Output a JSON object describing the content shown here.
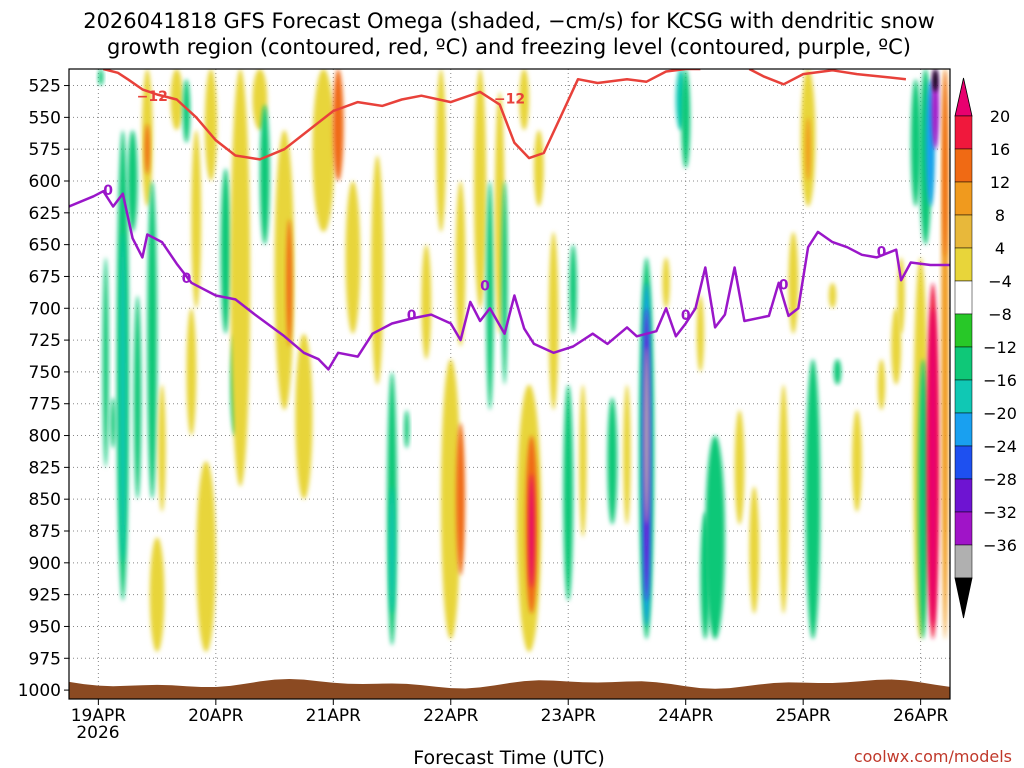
{
  "chart_data": {
    "type": "time-height cross section",
    "title_line1": "2026041818 GFS Forecast Omega (shaded, −cm/s) for KCSG with dendritic snow",
    "title_line2": "growth region (contoured, red, ºC) and freezing level (contoured, purple, ºC)",
    "xlabel": "Forecast Time (UTC)",
    "credit": "coolwx.com/models",
    "y_unit": "hPa",
    "y_range": [
      512,
      1007
    ],
    "x_range_hours": [
      -6,
      174
    ],
    "pressure_levels": [
      525,
      550,
      575,
      600,
      625,
      650,
      675,
      700,
      725,
      750,
      775,
      800,
      825,
      850,
      875,
      900,
      925,
      950,
      975,
      1000
    ],
    "date_ticks": [
      {
        "label": "19APR",
        "hour": 0
      },
      {
        "label": "20APR",
        "hour": 24
      },
      {
        "label": "21APR",
        "hour": 48
      },
      {
        "label": "22APR",
        "hour": 72
      },
      {
        "label": "23APR",
        "hour": 96
      },
      {
        "label": "24APR",
        "hour": 120
      },
      {
        "label": "25APR",
        "hour": 144
      },
      {
        "label": "26APR",
        "hour": 168
      }
    ],
    "year_label": "2026",
    "colorbar": {
      "labels": [
        "20",
        "16",
        "12",
        "8",
        "4",
        "−4",
        "−8",
        "−12",
        "−16",
        "−20",
        "−24",
        "−28",
        "−32",
        "−36"
      ],
      "colors": [
        "#e8006f",
        "#f0183c",
        "#f06a14",
        "#f09a1e",
        "#e8b83a",
        "#e8d53a",
        "#ffffff",
        "#28c828",
        "#0fc878",
        "#10c8b4",
        "#19a0f0",
        "#1e50f0",
        "#6e14d2",
        "#a014c8",
        "#b0b0b0",
        "#000000"
      ]
    },
    "dgz_contour_label": "−12",
    "freezing_contour_label": "0",
    "freezing_level_series": [
      {
        "hour": -6,
        "p": 620
      },
      {
        "hour": -1,
        "p": 612
      },
      {
        "hour": 1,
        "p": 608
      },
      {
        "hour": 3,
        "p": 620
      },
      {
        "hour": 5,
        "p": 610
      },
      {
        "hour": 7,
        "p": 645
      },
      {
        "hour": 9,
        "p": 660
      },
      {
        "hour": 10,
        "p": 642
      },
      {
        "hour": 13,
        "p": 648
      },
      {
        "hour": 16,
        "p": 665
      },
      {
        "hour": 19,
        "p": 680
      },
      {
        "hour": 24,
        "p": 690
      },
      {
        "hour": 28,
        "p": 693
      },
      {
        "hour": 32,
        "p": 705
      },
      {
        "hour": 38,
        "p": 722
      },
      {
        "hour": 42,
        "p": 735
      },
      {
        "hour": 45,
        "p": 740
      },
      {
        "hour": 47,
        "p": 748
      },
      {
        "hour": 49,
        "p": 735
      },
      {
        "hour": 53,
        "p": 738
      },
      {
        "hour": 56,
        "p": 720
      },
      {
        "hour": 60,
        "p": 712
      },
      {
        "hour": 64,
        "p": 708
      },
      {
        "hour": 68,
        "p": 705
      },
      {
        "hour": 72,
        "p": 712
      },
      {
        "hour": 74,
        "p": 725
      },
      {
        "hour": 76,
        "p": 695
      },
      {
        "hour": 78,
        "p": 710
      },
      {
        "hour": 80,
        "p": 700
      },
      {
        "hour": 83,
        "p": 720
      },
      {
        "hour": 85,
        "p": 690
      },
      {
        "hour": 87,
        "p": 716
      },
      {
        "hour": 89,
        "p": 728
      },
      {
        "hour": 93,
        "p": 735
      },
      {
        "hour": 97,
        "p": 730
      },
      {
        "hour": 101,
        "p": 720
      },
      {
        "hour": 104,
        "p": 728
      },
      {
        "hour": 108,
        "p": 715
      },
      {
        "hour": 110,
        "p": 722
      },
      {
        "hour": 114,
        "p": 718
      },
      {
        "hour": 116,
        "p": 700
      },
      {
        "hour": 118,
        "p": 722
      },
      {
        "hour": 120,
        "p": 712
      },
      {
        "hour": 122,
        "p": 700
      },
      {
        "hour": 124,
        "p": 668
      },
      {
        "hour": 126,
        "p": 715
      },
      {
        "hour": 128,
        "p": 705
      },
      {
        "hour": 130,
        "p": 668
      },
      {
        "hour": 132,
        "p": 710
      },
      {
        "hour": 137,
        "p": 706
      },
      {
        "hour": 139,
        "p": 680
      },
      {
        "hour": 141,
        "p": 706
      },
      {
        "hour": 143,
        "p": 700
      },
      {
        "hour": 145,
        "p": 652
      },
      {
        "hour": 147,
        "p": 640
      },
      {
        "hour": 150,
        "p": 648
      },
      {
        "hour": 153,
        "p": 652
      },
      {
        "hour": 156,
        "p": 658
      },
      {
        "hour": 159,
        "p": 660
      },
      {
        "hour": 163,
        "p": 654
      },
      {
        "hour": 164,
        "p": 678
      },
      {
        "hour": 166,
        "p": 664
      },
      {
        "hour": 170,
        "p": 666
      },
      {
        "hour": 174,
        "p": 666
      }
    ],
    "dgz_minus12_series": [
      {
        "hour": 1,
        "p": 512
      },
      {
        "hour": 4,
        "p": 515
      },
      {
        "hour": 6,
        "p": 520
      },
      {
        "hour": 9,
        "p": 528
      },
      {
        "hour": 12,
        "p": 532
      },
      {
        "hour": 16,
        "p": 536
      },
      {
        "hour": 20,
        "p": 550
      },
      {
        "hour": 24,
        "p": 568
      },
      {
        "hour": 28,
        "p": 580
      },
      {
        "hour": 33,
        "p": 583
      },
      {
        "hour": 38,
        "p": 575
      },
      {
        "hour": 43,
        "p": 560
      },
      {
        "hour": 48,
        "p": 545
      },
      {
        "hour": 53,
        "p": 538
      },
      {
        "hour": 58,
        "p": 541
      },
      {
        "hour": 62,
        "p": 536
      },
      {
        "hour": 66,
        "p": 533
      },
      {
        "hour": 72,
        "p": 538
      },
      {
        "hour": 78,
        "p": 530
      },
      {
        "hour": 82,
        "p": 540
      },
      {
        "hour": 85,
        "p": 570
      },
      {
        "hour": 88,
        "p": 582
      },
      {
        "hour": 91,
        "p": 578
      },
      {
        "hour": 95,
        "p": 545
      },
      {
        "hour": 98,
        "p": 520
      },
      {
        "hour": 102,
        "p": 523
      },
      {
        "hour": 108,
        "p": 520
      },
      {
        "hour": 112,
        "p": 522
      },
      {
        "hour": 116,
        "p": 514
      },
      {
        "hour": 120,
        "p": 512
      },
      {
        "hour": 123,
        "p": 512
      }
    ],
    "dgz_minus12_series_b": [
      {
        "hour": 133,
        "p": 512
      },
      {
        "hour": 136,
        "p": 518
      },
      {
        "hour": 140,
        "p": 524
      },
      {
        "hour": 144,
        "p": 516
      },
      {
        "hour": 150,
        "p": 513
      },
      {
        "hour": 155,
        "p": 516
      },
      {
        "hour": 160,
        "p": 518
      },
      {
        "hour": 165,
        "p": 520
      }
    ],
    "omega_blobs": [
      {
        "hour": 0.5,
        "p_top": 512,
        "p_bot": 525,
        "width_h": 1,
        "value": -8
      },
      {
        "hour": 1.5,
        "p_top": 660,
        "p_bot": 825,
        "width_h": 1.2,
        "value": -8
      },
      {
        "hour": 3,
        "p_top": 770,
        "p_bot": 810,
        "width_h": 1,
        "value": -8
      },
      {
        "hour": 5,
        "p_top": 560,
        "p_bot": 930,
        "width_h": 2.5,
        "value": -8
      },
      {
        "hour": 5,
        "p_top": 640,
        "p_bot": 900,
        "width_h": 1.2,
        "value": -12
      },
      {
        "hour": 7,
        "p_top": 560,
        "p_bot": 640,
        "width_h": 2,
        "value": -8
      },
      {
        "hour": 8,
        "p_top": 690,
        "p_bot": 850,
        "width_h": 1.5,
        "value": -8
      },
      {
        "hour": 10,
        "p_top": 512,
        "p_bot": 620,
        "width_h": 2.2,
        "value": 6
      },
      {
        "hour": 10,
        "p_top": 555,
        "p_bot": 595,
        "width_h": 0.8,
        "value": 12
      },
      {
        "hour": 11,
        "p_top": 600,
        "p_bot": 850,
        "width_h": 2,
        "value": -8
      },
      {
        "hour": 12,
        "p_top": 880,
        "p_bot": 970,
        "width_h": 3,
        "value": 6
      },
      {
        "hour": 13,
        "p_top": 760,
        "p_bot": 860,
        "width_h": 1.5,
        "value": 6
      },
      {
        "hour": 16,
        "p_top": 512,
        "p_bot": 560,
        "width_h": 2.5,
        "value": 6
      },
      {
        "hour": 18,
        "p_top": 520,
        "p_bot": 570,
        "width_h": 1.5,
        "value": -8
      },
      {
        "hour": 19,
        "p_top": 700,
        "p_bot": 800,
        "width_h": 2,
        "value": 6
      },
      {
        "hour": 20,
        "p_top": 560,
        "p_bot": 700,
        "width_h": 2,
        "value": 6
      },
      {
        "hour": 22,
        "p_top": 820,
        "p_bot": 970,
        "width_h": 4,
        "value": 6
      },
      {
        "hour": 23,
        "p_top": 512,
        "p_bot": 600,
        "width_h": 2.5,
        "value": 6
      },
      {
        "hour": 26,
        "p_top": 590,
        "p_bot": 720,
        "width_h": 2,
        "value": -8
      },
      {
        "hour": 28,
        "p_top": 720,
        "p_bot": 800,
        "width_h": 2,
        "value": -8
      },
      {
        "hour": 29,
        "p_top": 512,
        "p_bot": 840,
        "width_h": 4,
        "value": 6
      },
      {
        "hour": 33,
        "p_top": 512,
        "p_bot": 560,
        "width_h": 3,
        "value": 6
      },
      {
        "hour": 34,
        "p_top": 540,
        "p_bot": 650,
        "width_h": 2,
        "value": -8
      },
      {
        "hour": 38,
        "p_top": 560,
        "p_bot": 780,
        "width_h": 4,
        "value": 6
      },
      {
        "hour": 39,
        "p_top": 630,
        "p_bot": 730,
        "width_h": 1.2,
        "value": 12
      },
      {
        "hour": 42,
        "p_top": 720,
        "p_bot": 850,
        "width_h": 3.5,
        "value": 6
      },
      {
        "hour": 46,
        "p_top": 512,
        "p_bot": 640,
        "width_h": 4.5,
        "value": 6
      },
      {
        "hour": 49,
        "p_top": 512,
        "p_bot": 600,
        "width_h": 2.2,
        "value": 12
      },
      {
        "hour": 52,
        "p_top": 600,
        "p_bot": 720,
        "width_h": 3,
        "value": 6
      },
      {
        "hour": 57,
        "p_top": 580,
        "p_bot": 760,
        "width_h": 2.5,
        "value": 6
      },
      {
        "hour": 60,
        "p_top": 750,
        "p_bot": 965,
        "width_h": 2,
        "value": -8
      },
      {
        "hour": 60,
        "p_top": 840,
        "p_bot": 940,
        "width_h": 1,
        "value": -12
      },
      {
        "hour": 63,
        "p_top": 780,
        "p_bot": 810,
        "width_h": 1,
        "value": -8
      },
      {
        "hour": 67,
        "p_top": 650,
        "p_bot": 740,
        "width_h": 2,
        "value": 6
      },
      {
        "hour": 70,
        "p_top": 512,
        "p_bot": 640,
        "width_h": 2,
        "value": 6
      },
      {
        "hour": 72,
        "p_top": 740,
        "p_bot": 960,
        "width_h": 4,
        "value": 6
      },
      {
        "hour": 74,
        "p_top": 790,
        "p_bot": 910,
        "width_h": 1.8,
        "value": 12
      },
      {
        "hour": 74,
        "p_top": 600,
        "p_bot": 730,
        "width_h": 2,
        "value": 6
      },
      {
        "hour": 78,
        "p_top": 512,
        "p_bot": 700,
        "width_h": 2.5,
        "value": 6
      },
      {
        "hour": 80,
        "p_top": 600,
        "p_bot": 780,
        "width_h": 1.5,
        "value": -8
      },
      {
        "hour": 82,
        "p_top": 530,
        "p_bot": 720,
        "width_h": 2,
        "value": 6
      },
      {
        "hour": 83,
        "p_top": 600,
        "p_bot": 760,
        "width_h": 1.2,
        "value": -8
      },
      {
        "hour": 87,
        "p_top": 512,
        "p_bot": 560,
        "width_h": 2,
        "value": 6
      },
      {
        "hour": 88,
        "p_top": 760,
        "p_bot": 970,
        "width_h": 5,
        "value": 6
      },
      {
        "hour": 88.5,
        "p_top": 800,
        "p_bot": 940,
        "width_h": 2.5,
        "value": 12
      },
      {
        "hour": 88.5,
        "p_top": 830,
        "p_bot": 920,
        "width_h": 1,
        "value": 20
      },
      {
        "hour": 90,
        "p_top": 560,
        "p_bot": 620,
        "width_h": 2,
        "value": 6
      },
      {
        "hour": 93,
        "p_top": 640,
        "p_bot": 780,
        "width_h": 2,
        "value": 6
      },
      {
        "hour": 96,
        "p_top": 760,
        "p_bot": 930,
        "width_h": 2,
        "value": -8
      },
      {
        "hour": 97,
        "p_top": 650,
        "p_bot": 720,
        "width_h": 1.5,
        "value": -8
      },
      {
        "hour": 99,
        "p_top": 760,
        "p_bot": 880,
        "width_h": 1.5,
        "value": 6
      },
      {
        "hour": 105,
        "p_top": 770,
        "p_bot": 870,
        "width_h": 2,
        "value": -8
      },
      {
        "hour": 108,
        "p_top": 760,
        "p_bot": 870,
        "width_h": 1.5,
        "value": 6
      },
      {
        "hour": 112,
        "p_top": 660,
        "p_bot": 960,
        "width_h": 3,
        "value": -8
      },
      {
        "hour": 112,
        "p_top": 680,
        "p_bot": 950,
        "width_h": 2,
        "value": -16
      },
      {
        "hour": 112,
        "p_top": 700,
        "p_bot": 930,
        "width_h": 1.3,
        "value": -24
      },
      {
        "hour": 112,
        "p_top": 730,
        "p_bot": 870,
        "width_h": 0.8,
        "value": -34
      },
      {
        "hour": 116,
        "p_top": 660,
        "p_bot": 700,
        "width_h": 1.5,
        "value": 6
      },
      {
        "hour": 119,
        "p_top": 512,
        "p_bot": 560,
        "width_h": 2,
        "value": -12
      },
      {
        "hour": 120,
        "p_top": 512,
        "p_bot": 590,
        "width_h": 1.8,
        "value": -8
      },
      {
        "hour": 123,
        "p_top": 690,
        "p_bot": 750,
        "width_h": 1.5,
        "value": 6
      },
      {
        "hour": 124,
        "p_top": 860,
        "p_bot": 960,
        "width_h": 2,
        "value": -8
      },
      {
        "hour": 126,
        "p_top": 800,
        "p_bot": 960,
        "width_h": 4,
        "value": -8
      },
      {
        "hour": 131,
        "p_top": 780,
        "p_bot": 870,
        "width_h": 2,
        "value": 6
      },
      {
        "hour": 134,
        "p_top": 840,
        "p_bot": 940,
        "width_h": 2,
        "value": 6
      },
      {
        "hour": 140,
        "p_top": 760,
        "p_bot": 940,
        "width_h": 2,
        "value": 6
      },
      {
        "hour": 142,
        "p_top": 640,
        "p_bot": 720,
        "width_h": 2,
        "value": 6
      },
      {
        "hour": 145,
        "p_top": 512,
        "p_bot": 620,
        "width_h": 3,
        "value": 6
      },
      {
        "hour": 145,
        "p_top": 550,
        "p_bot": 600,
        "width_h": 1,
        "value": 10
      },
      {
        "hour": 146,
        "p_top": 740,
        "p_bot": 960,
        "width_h": 3,
        "value": -8
      },
      {
        "hour": 150,
        "p_top": 680,
        "p_bot": 700,
        "width_h": 1.5,
        "value": 6
      },
      {
        "hour": 151,
        "p_top": 740,
        "p_bot": 760,
        "width_h": 1.5,
        "value": -8
      },
      {
        "hour": 155,
        "p_top": 780,
        "p_bot": 860,
        "width_h": 2,
        "value": 6
      },
      {
        "hour": 160,
        "p_top": 740,
        "p_bot": 780,
        "width_h": 1.5,
        "value": 6
      },
      {
        "hour": 163,
        "p_top": 700,
        "p_bot": 760,
        "width_h": 2,
        "value": 6
      },
      {
        "hour": 164,
        "p_top": 660,
        "p_bot": 720,
        "width_h": 1.5,
        "value": 6
      },
      {
        "hour": 167,
        "p_top": 520,
        "p_bot": 620,
        "width_h": 2,
        "value": -8
      },
      {
        "hour": 168,
        "p_top": 660,
        "p_bot": 960,
        "width_h": 3,
        "value": 6
      },
      {
        "hour": 168.5,
        "p_top": 740,
        "p_bot": 960,
        "width_h": 2,
        "value": -8
      },
      {
        "hour": 169,
        "p_top": 512,
        "p_bot": 650,
        "width_h": 2.5,
        "value": -8
      },
      {
        "hour": 170,
        "p_top": 520,
        "p_bot": 620,
        "width_h": 1.8,
        "value": -16
      },
      {
        "hour": 171,
        "p_top": 512,
        "p_bot": 575,
        "width_h": 1.5,
        "value": -28
      },
      {
        "hour": 171,
        "p_top": 512,
        "p_bot": 530,
        "width_h": 1,
        "value": -36
      },
      {
        "hour": 170.5,
        "p_top": 680,
        "p_bot": 960,
        "width_h": 2.5,
        "value": 16
      },
      {
        "hour": 170.5,
        "p_top": 700,
        "p_bot": 950,
        "width_h": 1.6,
        "value": 22
      },
      {
        "hour": 173,
        "p_top": 512,
        "p_bot": 960,
        "width_h": 1.5,
        "value": 8
      },
      {
        "hour": 173,
        "p_top": 512,
        "p_bot": 660,
        "width_h": 1,
        "value": 12
      }
    ]
  }
}
